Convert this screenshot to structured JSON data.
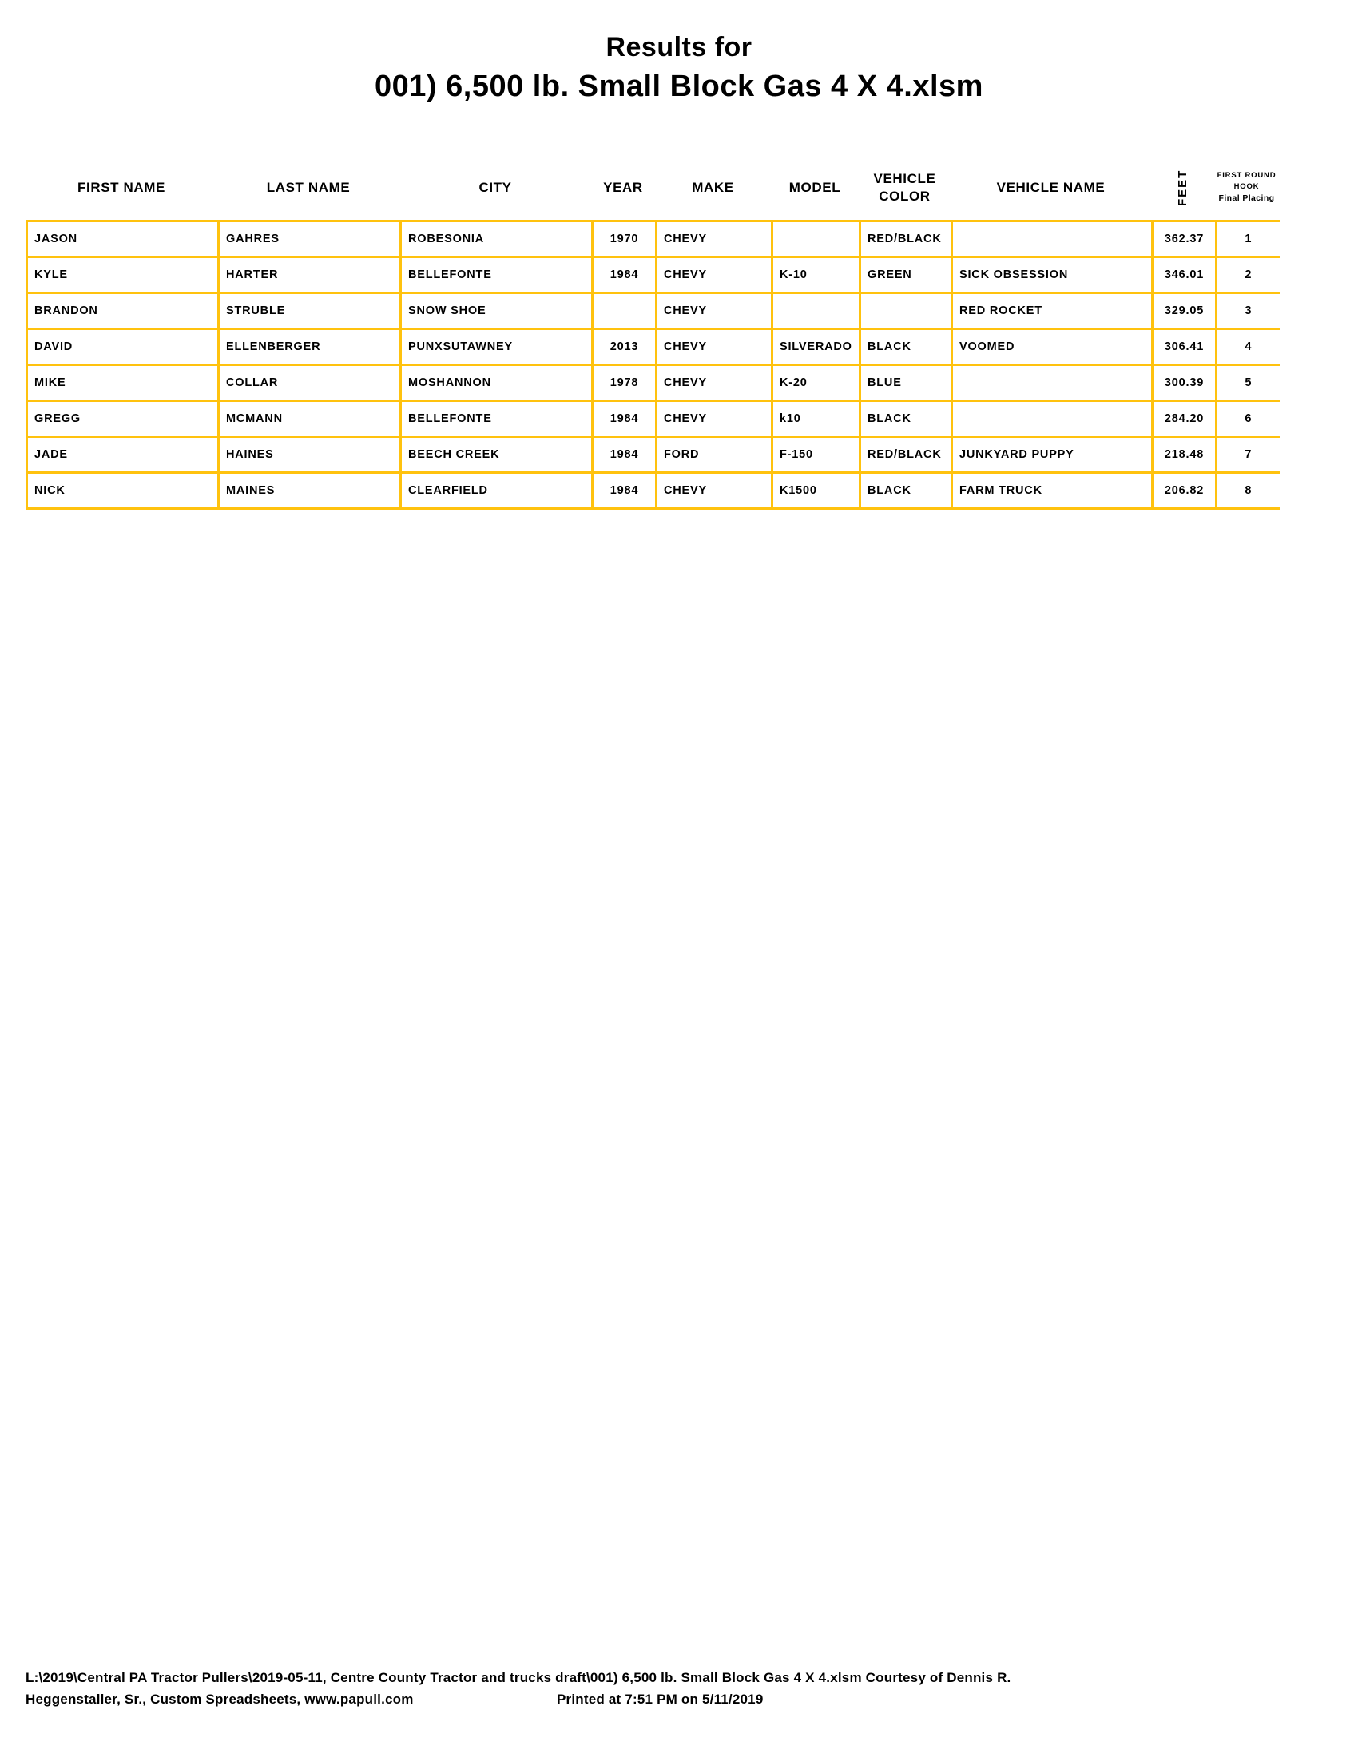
{
  "title": {
    "line1": "Results for",
    "line2": "001) 6,500 lb. Small Block Gas 4 X 4.xlsm"
  },
  "table": {
    "header": {
      "first_name": "FIRST NAME",
      "last_name": "LAST NAME",
      "city": "CITY",
      "year": "YEAR",
      "make": "MAKE",
      "model": "MODEL",
      "vehicle_color_line1": "VEHICLE",
      "vehicle_color_line2": "COLOR",
      "vehicle_name": "VEHICLE NAME",
      "feet": "FEET",
      "placing_line1": "FIRST ROUND",
      "placing_line2": "HOOK",
      "placing_line3": "Final Placing"
    },
    "rows": [
      {
        "first_name": "JASON",
        "last_name": "GAHRES",
        "city": "ROBESONIA",
        "year": "1970",
        "make": "CHEVY",
        "model": "",
        "vehicle_color": "RED/BLACK",
        "vehicle_name": "",
        "feet": "362.37",
        "placing": "1"
      },
      {
        "first_name": "KYLE",
        "last_name": "HARTER",
        "city": "BELLEFONTE",
        "year": "1984",
        "make": "CHEVY",
        "model": "K-10",
        "vehicle_color": "GREEN",
        "vehicle_name": "SICK OBSESSION",
        "feet": "346.01",
        "placing": "2"
      },
      {
        "first_name": "BRANDON",
        "last_name": "STRUBLE",
        "city": "SNOW SHOE",
        "year": "",
        "make": "CHEVY",
        "model": "",
        "vehicle_color": "",
        "vehicle_name": "RED ROCKET",
        "feet": "329.05",
        "placing": "3"
      },
      {
        "first_name": "DAVID",
        "last_name": "ELLENBERGER",
        "city": "PUNXSUTAWNEY",
        "year": "2013",
        "make": "CHEVY",
        "model": "SILVERADO",
        "vehicle_color": "BLACK",
        "vehicle_name": "VOOMED",
        "feet": "306.41",
        "placing": "4"
      },
      {
        "first_name": "MIKE",
        "last_name": "COLLAR",
        "city": "MOSHANNON",
        "year": "1978",
        "make": "CHEVY",
        "model": "K-20",
        "vehicle_color": "BLUE",
        "vehicle_name": "",
        "feet": "300.39",
        "placing": "5"
      },
      {
        "first_name": "GREGG",
        "last_name": "MCMANN",
        "city": "BELLEFONTE",
        "year": "1984",
        "make": "CHEVY",
        "model": "k10",
        "vehicle_color": "BLACK",
        "vehicle_name": "",
        "feet": "284.20",
        "placing": "6"
      },
      {
        "first_name": "JADE",
        "last_name": "HAINES",
        "city": "BEECH CREEK",
        "year": "1984",
        "make": "FORD",
        "model": "F-150",
        "vehicle_color": "RED/BLACK",
        "vehicle_name": "JUNKYARD PUPPY",
        "feet": "218.48",
        "placing": "7"
      },
      {
        "first_name": "NICK",
        "last_name": "MAINES",
        "city": "CLEARFIELD",
        "year": "1984",
        "make": "CHEVY",
        "model": "K1500",
        "vehicle_color": "BLACK",
        "vehicle_name": "FARM TRUCK",
        "feet": "206.82",
        "placing": "8"
      }
    ]
  },
  "footer": {
    "line1": "L:\\2019\\Central PA Tractor Pullers\\2019-05-11, Centre County Tractor and trucks draft\\001) 6,500 lb. Small Block Gas 4 X 4.xlsm  Courtesy of Dennis R.",
    "line2_left": "Heggenstaller, Sr., Custom Spreadsheets, www.papull.com",
    "line2_right": "Printed at 7:51 PM on 5/11/2019"
  },
  "colors": {
    "table_border": "#FFC20E",
    "text": "#000000",
    "background": "#FFFFFF"
  }
}
